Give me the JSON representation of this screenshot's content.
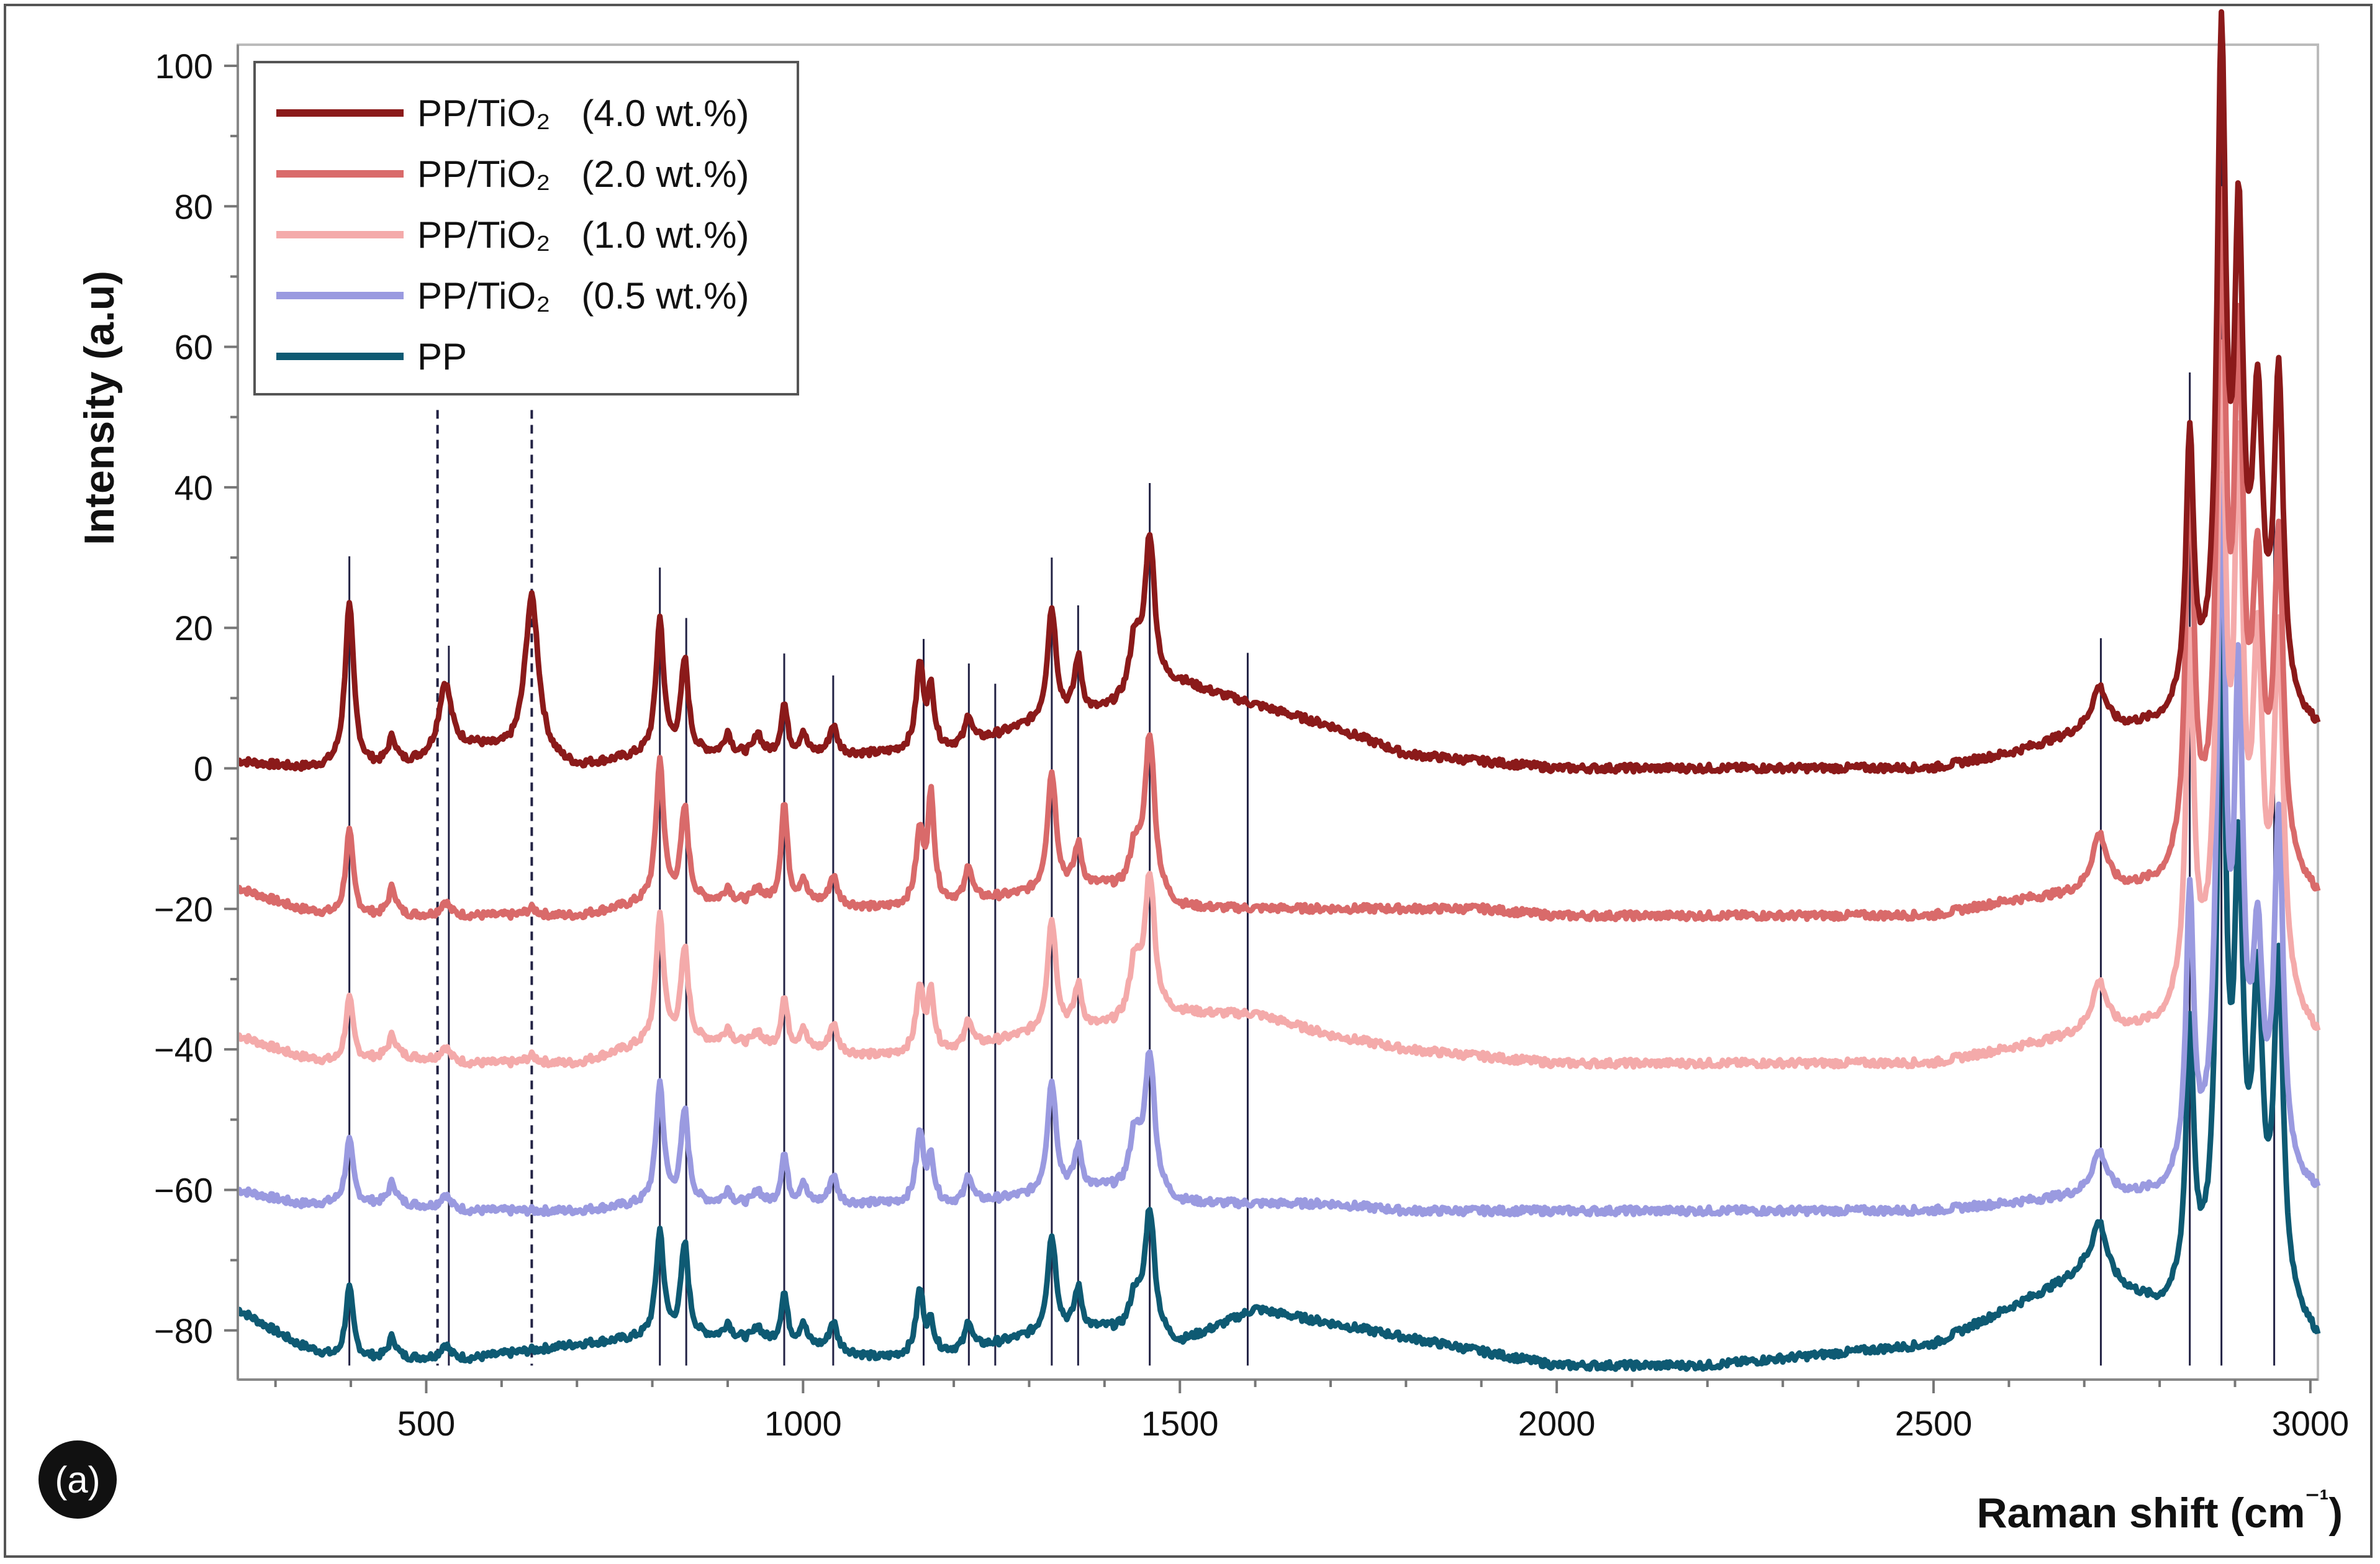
{
  "chart_data": {
    "type": "line",
    "title": "",
    "xlabel": "Raman shift (cm⁻¹)",
    "ylabel": "Intensity (a.u)",
    "xlim": [
      250,
      3010
    ],
    "ylim": [
      -87,
      103
    ],
    "xticks": [
      500,
      1000,
      1500,
      2000,
      2500,
      3000
    ],
    "yticks": [
      100,
      80,
      60,
      40,
      20,
      0,
      -20,
      -40,
      -60,
      -80
    ],
    "grid": false,
    "legend_position": "top-left",
    "panel_label": "(a)",
    "series": [
      {
        "name": "PP/TiO₂   (4.0 wt.%)",
        "color": "#8b1a1a",
        "offset": 0,
        "baseline": [
          [
            250,
            1
          ],
          [
            330,
            0
          ],
          [
            380,
            0
          ],
          [
            460,
            0
          ],
          [
            560,
            3
          ],
          [
            700,
            0
          ],
          [
            800,
            2
          ],
          [
            900,
            2
          ],
          [
            1000,
            2
          ],
          [
            1100,
            2
          ],
          [
            1200,
            3
          ],
          [
            1300,
            6
          ],
          [
            1400,
            8
          ],
          [
            1500,
            12
          ],
          [
            1600,
            9
          ],
          [
            1700,
            6
          ],
          [
            1800,
            2
          ],
          [
            1900,
            1
          ],
          [
            2000,
            0
          ],
          [
            2200,
            0
          ],
          [
            2400,
            0
          ],
          [
            2500,
            0
          ],
          [
            2600,
            2
          ],
          [
            2700,
            5
          ],
          [
            2800,
            6
          ],
          [
            2850,
            8
          ],
          [
            2950,
            8
          ],
          [
            3010,
            5
          ]
        ],
        "peaks": [
          [
            398,
            23,
            7
          ],
          [
            455,
            4,
            7
          ],
          [
            525,
            10,
            10
          ],
          [
            640,
            23,
            11
          ],
          [
            810,
            19,
            6
          ],
          [
            843,
            13,
            6
          ],
          [
            900,
            3,
            5
          ],
          [
            940,
            3,
            5
          ],
          [
            975,
            7,
            5
          ],
          [
            1000,
            3,
            5
          ],
          [
            1040,
            4,
            6
          ],
          [
            1155,
            12,
            6
          ],
          [
            1170,
            8,
            5
          ],
          [
            1220,
            4,
            5
          ],
          [
            1330,
            16,
            7
          ],
          [
            1365,
            8,
            6
          ],
          [
            1440,
            8,
            8
          ],
          [
            1460,
            22,
            8
          ],
          [
            2720,
            6,
            12
          ],
          [
            2840,
            38,
            6
          ],
          [
            2882,
            92,
            7
          ],
          [
            2905,
            63,
            7
          ],
          [
            2930,
            40,
            8
          ],
          [
            2958,
            46,
            7
          ]
        ]
      },
      {
        "name": "PP/TiO₂   (2.0 wt.%)",
        "color": "#d96a6a",
        "offset": -20,
        "baseline": [
          [
            250,
            3
          ],
          [
            330,
            0
          ],
          [
            380,
            -1
          ],
          [
            460,
            -1
          ],
          [
            560,
            -1
          ],
          [
            700,
            -1
          ],
          [
            800,
            1
          ],
          [
            900,
            1
          ],
          [
            1000,
            1
          ],
          [
            1100,
            0
          ],
          [
            1200,
            1
          ],
          [
            1300,
            2
          ],
          [
            1400,
            3
          ],
          [
            1500,
            0
          ],
          [
            1600,
            0
          ],
          [
            1700,
            0
          ],
          [
            1800,
            0
          ],
          [
            1900,
            0
          ],
          [
            2000,
            -1
          ],
          [
            2200,
            -1
          ],
          [
            2400,
            -1
          ],
          [
            2500,
            -1
          ],
          [
            2600,
            1
          ],
          [
            2700,
            2
          ],
          [
            2800,
            3
          ],
          [
            2850,
            6
          ],
          [
            2950,
            6
          ],
          [
            3010,
            1
          ]
        ],
        "peaks": [
          [
            398,
            12,
            6
          ],
          [
            455,
            4,
            6
          ],
          [
            525,
            2,
            7
          ],
          [
            640,
            1,
            9
          ],
          [
            810,
            20,
            6
          ],
          [
            843,
            13,
            6
          ],
          [
            900,
            2,
            5
          ],
          [
            940,
            2,
            5
          ],
          [
            975,
            14,
            5
          ],
          [
            1000,
            3,
            5
          ],
          [
            1040,
            4,
            6
          ],
          [
            1155,
            10,
            6
          ],
          [
            1170,
            15,
            5
          ],
          [
            1220,
            5,
            5
          ],
          [
            1330,
            17,
            7
          ],
          [
            1365,
            6,
            6
          ],
          [
            1440,
            6,
            8
          ],
          [
            1460,
            23,
            8
          ],
          [
            2720,
            8,
            12
          ],
          [
            2840,
            60,
            6
          ],
          [
            2882,
            88,
            7
          ],
          [
            2905,
            68,
            7
          ],
          [
            2930,
            38,
            8
          ],
          [
            2958,
            45,
            7
          ]
        ]
      },
      {
        "name": "PP/TiO₂   (1.0 wt.%)",
        "color": "#f4aaaa",
        "offset": -40,
        "baseline": [
          [
            250,
            2
          ],
          [
            330,
            -1
          ],
          [
            380,
            -2
          ],
          [
            460,
            -1
          ],
          [
            560,
            -2
          ],
          [
            700,
            -2
          ],
          [
            800,
            1
          ],
          [
            900,
            1
          ],
          [
            1000,
            0
          ],
          [
            1100,
            -1
          ],
          [
            1200,
            0
          ],
          [
            1300,
            2
          ],
          [
            1400,
            3
          ],
          [
            1500,
            5
          ],
          [
            1600,
            5
          ],
          [
            1700,
            2
          ],
          [
            1800,
            0
          ],
          [
            1900,
            -1
          ],
          [
            2000,
            -2
          ],
          [
            2200,
            -2
          ],
          [
            2400,
            -2
          ],
          [
            2500,
            -2
          ],
          [
            2600,
            0
          ],
          [
            2700,
            2
          ],
          [
            2800,
            3
          ],
          [
            2850,
            7
          ],
          [
            2950,
            7
          ],
          [
            3010,
            1
          ]
        ],
        "peaks": [
          [
            398,
            9,
            6
          ],
          [
            455,
            3,
            6
          ],
          [
            525,
            2,
            7
          ],
          [
            640,
            1,
            9
          ],
          [
            810,
            18,
            6
          ],
          [
            843,
            13,
            6
          ],
          [
            900,
            2,
            5
          ],
          [
            940,
            2,
            5
          ],
          [
            975,
            7,
            5
          ],
          [
            1000,
            3,
            5
          ],
          [
            1040,
            4,
            6
          ],
          [
            1155,
            9,
            6
          ],
          [
            1170,
            8,
            5
          ],
          [
            1220,
            4,
            5
          ],
          [
            1330,
            16,
            7
          ],
          [
            1365,
            6,
            6
          ],
          [
            1440,
            8,
            8
          ],
          [
            1460,
            20,
            8
          ],
          [
            2720,
            7,
            12
          ],
          [
            2840,
            50,
            6
          ],
          [
            2882,
            85,
            7
          ],
          [
            2905,
            70,
            7
          ],
          [
            2930,
            45,
            8
          ],
          [
            2958,
            50,
            7
          ]
        ]
      },
      {
        "name": "PP/TiO₂   (0.5 wt.%)",
        "color": "#9a9ae0",
        "offset": -60,
        "baseline": [
          [
            250,
            0
          ],
          [
            330,
            -2
          ],
          [
            380,
            -2
          ],
          [
            460,
            -2
          ],
          [
            560,
            -3
          ],
          [
            700,
            -3
          ],
          [
            800,
            -2
          ],
          [
            900,
            -2
          ],
          [
            1000,
            -2
          ],
          [
            1100,
            -2
          ],
          [
            1200,
            -2
          ],
          [
            1300,
            -1
          ],
          [
            1400,
            0
          ],
          [
            1500,
            -2
          ],
          [
            1600,
            -2
          ],
          [
            1700,
            -2
          ],
          [
            1800,
            -3
          ],
          [
            1900,
            -3
          ],
          [
            2000,
            -3
          ],
          [
            2200,
            -3
          ],
          [
            2400,
            -3
          ],
          [
            2500,
            -3
          ],
          [
            2600,
            -2
          ],
          [
            2700,
            -1
          ],
          [
            2800,
            -1
          ],
          [
            2850,
            1
          ],
          [
            2950,
            1
          ],
          [
            3010,
            -1
          ]
        ],
        "peaks": [
          [
            398,
            9,
            6
          ],
          [
            455,
            3,
            6
          ],
          [
            525,
            2,
            7
          ],
          [
            810,
            17,
            6
          ],
          [
            843,
            13,
            6
          ],
          [
            900,
            2,
            5
          ],
          [
            940,
            2,
            5
          ],
          [
            975,
            7,
            5
          ],
          [
            1000,
            3,
            5
          ],
          [
            1040,
            4,
            6
          ],
          [
            1155,
            10,
            6
          ],
          [
            1170,
            6,
            5
          ],
          [
            1220,
            4,
            5
          ],
          [
            1330,
            16,
            7
          ],
          [
            1365,
            6,
            6
          ],
          [
            1440,
            8,
            8
          ],
          [
            1460,
            20,
            8
          ],
          [
            2720,
            6,
            12
          ],
          [
            2840,
            40,
            6
          ],
          [
            2882,
            93,
            7
          ],
          [
            2905,
            65,
            7
          ],
          [
            2930,
            30,
            8
          ],
          [
            2958,
            50,
            7
          ]
        ]
      },
      {
        "name": "PP",
        "color": "#0e5a73",
        "offset": -80,
        "baseline": [
          [
            250,
            3
          ],
          [
            330,
            -2
          ],
          [
            380,
            -4
          ],
          [
            460,
            -4
          ],
          [
            560,
            -4
          ],
          [
            700,
            -2
          ],
          [
            800,
            -1
          ],
          [
            900,
            -1
          ],
          [
            1000,
            -2
          ],
          [
            1100,
            -4
          ],
          [
            1200,
            -3
          ],
          [
            1300,
            -1
          ],
          [
            1400,
            0
          ],
          [
            1500,
            -2
          ],
          [
            1600,
            3
          ],
          [
            1700,
            1
          ],
          [
            1800,
            -1
          ],
          [
            1900,
            -3
          ],
          [
            2000,
            -5
          ],
          [
            2200,
            -5
          ],
          [
            2400,
            -3
          ],
          [
            2500,
            -2
          ],
          [
            2600,
            3
          ],
          [
            2700,
            8
          ],
          [
            2800,
            3
          ],
          [
            2850,
            5
          ],
          [
            2950,
            5
          ],
          [
            3010,
            -2
          ]
        ],
        "peaks": [
          [
            398,
            10,
            6
          ],
          [
            455,
            3,
            6
          ],
          [
            525,
            2,
            7
          ],
          [
            810,
            15,
            6
          ],
          [
            843,
            13,
            6
          ],
          [
            900,
            2,
            5
          ],
          [
            940,
            2,
            5
          ],
          [
            975,
            7,
            5
          ],
          [
            1000,
            3,
            5
          ],
          [
            1040,
            4,
            6
          ],
          [
            1155,
            9,
            6
          ],
          [
            1170,
            4,
            5
          ],
          [
            1220,
            4,
            5
          ],
          [
            1330,
            14,
            7
          ],
          [
            1365,
            6,
            6
          ],
          [
            1440,
            5,
            8
          ],
          [
            1460,
            18,
            8
          ],
          [
            2720,
            8,
            12
          ],
          [
            2840,
            37,
            6
          ],
          [
            2882,
            91,
            7
          ],
          [
            2905,
            55,
            7
          ],
          [
            2930,
            40,
            8
          ],
          [
            2958,
            46,
            7
          ]
        ]
      }
    ],
    "reference_lines": {
      "solid": [
        398,
        530,
        810,
        845,
        975,
        1040,
        1160,
        1220,
        1255,
        1330,
        1365,
        1460,
        1590,
        2722,
        2840,
        2882,
        2952
      ],
      "dashed": [
        515,
        640
      ]
    }
  }
}
